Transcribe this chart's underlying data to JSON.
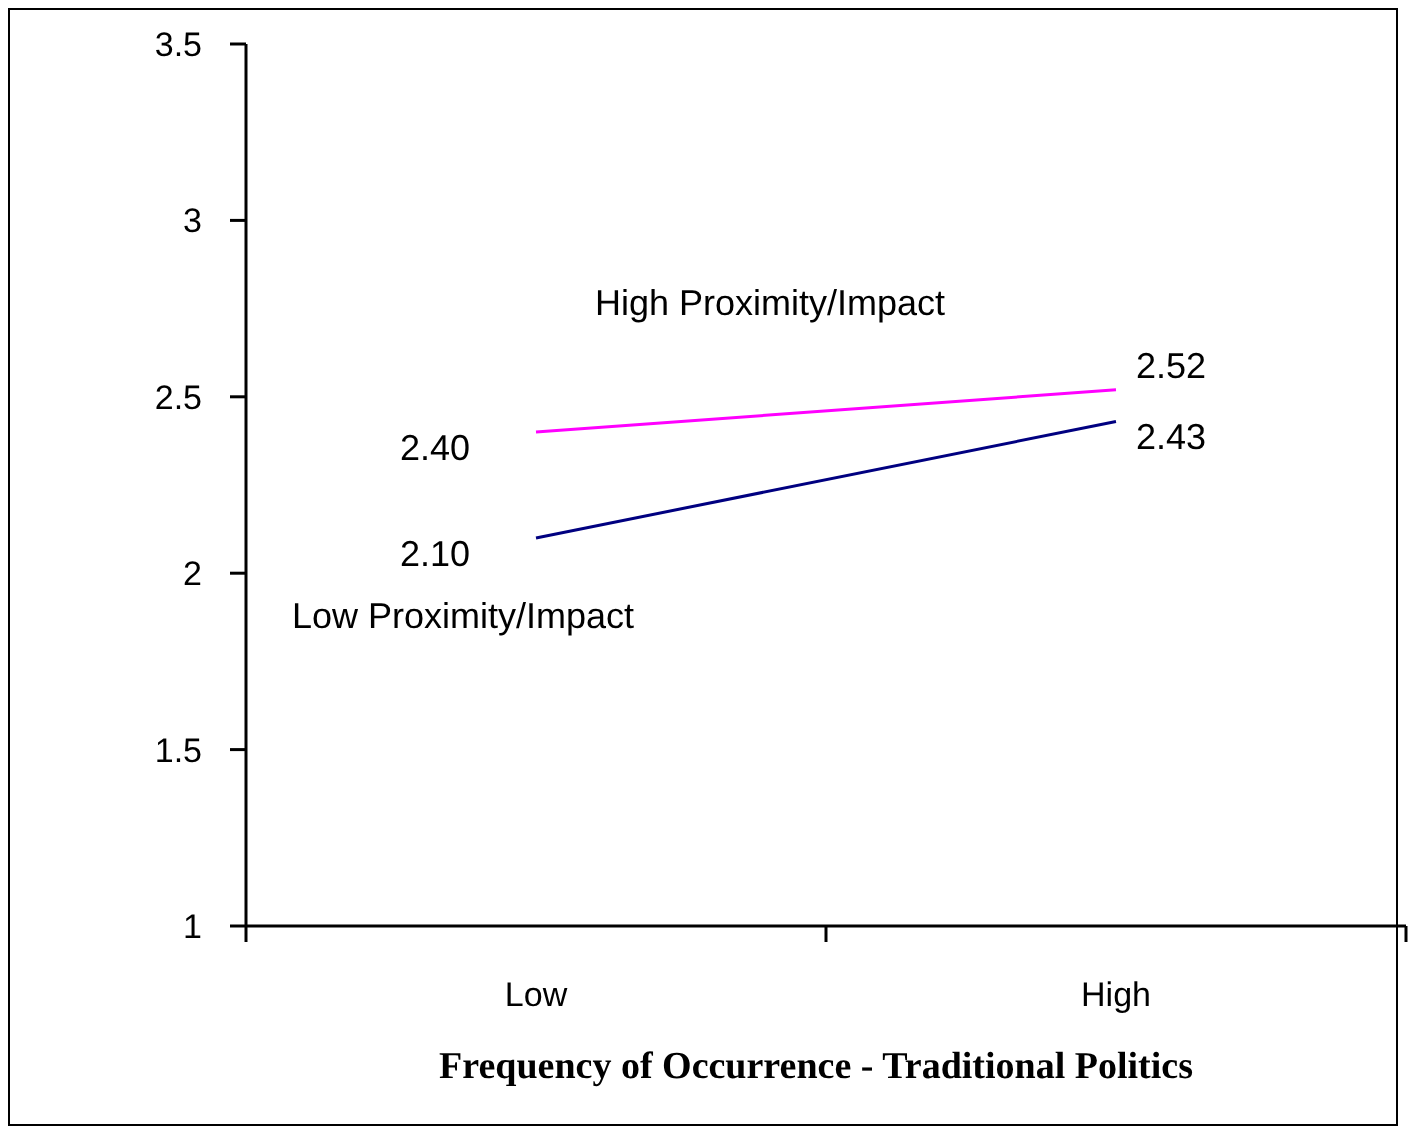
{
  "chart_data": {
    "type": "line",
    "categories": [
      "Low",
      "High"
    ],
    "xlabel": "Frequency of Occurrence - Traditional Politics",
    "ylim": [
      1,
      3.5
    ],
    "yticks": [
      1,
      1.5,
      2,
      2.5,
      3,
      3.5
    ],
    "grid": false,
    "marker": "none",
    "line_style": "solid",
    "series": [
      {
        "name": "High Proximity/Impact",
        "color": "#ff00ff",
        "values": [
          2.4,
          2.52
        ],
        "value_labels": [
          "2.40",
          "2.52"
        ]
      },
      {
        "name": "Low Proximity/Impact",
        "color": "#000080",
        "values": [
          2.1,
          2.43
        ],
        "value_labels": [
          "2.10",
          "2.43"
        ]
      }
    ]
  }
}
